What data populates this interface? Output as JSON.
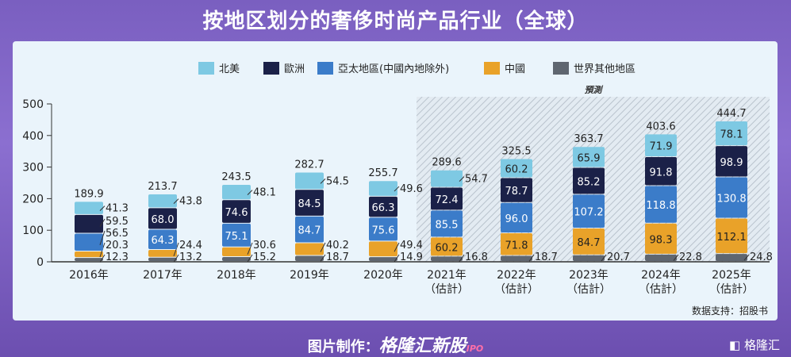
{
  "title": "按地区划分的奢侈时尚产品行业（全球）",
  "footer": {
    "prefix": "图片制作：",
    "brand": "格隆汇新股",
    "brand_suffix": "IPO",
    "logo": "格隆汇"
  },
  "source": "数据支持：招股书",
  "chart_data": {
    "type": "bar",
    "stacked": true,
    "title": "",
    "xlabel": "",
    "ylabel": "",
    "ylim": [
      0,
      500
    ],
    "yticks": [
      0,
      100,
      200,
      300,
      400,
      500
    ],
    "grid": false,
    "legend_position": "top",
    "forecast_label": "預測",
    "categories": [
      "2016年",
      "2017年",
      "2018年",
      "2019年",
      "2020年",
      "2021年\n（估計）",
      "2022年\n（估計）",
      "2023年\n（估計）",
      "2024年\n（估計）",
      "2025年\n（估計）"
    ],
    "forecast_from_index": 5,
    "totals": [
      189.9,
      213.7,
      243.5,
      282.7,
      255.7,
      289.6,
      325.5,
      363.7,
      403.6,
      444.7
    ],
    "series": [
      {
        "name": "世界其他地區",
        "color": "#5f6670",
        "values": [
          12.3,
          13.2,
          15.2,
          18.7,
          14.9,
          16.8,
          18.7,
          20.7,
          22.8,
          24.8
        ]
      },
      {
        "name": "中國",
        "color": "#e9a229",
        "values": [
          20.3,
          24.4,
          30.6,
          40.2,
          49.4,
          60.2,
          71.8,
          84.7,
          98.3,
          112.1
        ]
      },
      {
        "name": "亞太地區(中國內地除外)",
        "color": "#3b7cc9",
        "values": [
          56.5,
          64.3,
          75.1,
          84.7,
          75.6,
          85.5,
          96.0,
          107.2,
          118.8,
          130.8
        ]
      },
      {
        "name": "歐洲",
        "color": "#1b2148",
        "values": [
          59.5,
          68.0,
          74.6,
          84.5,
          66.3,
          72.4,
          78.7,
          85.2,
          91.8,
          98.9
        ]
      },
      {
        "name": "北美",
        "color": "#7ec9e3",
        "values": [
          41.3,
          43.8,
          48.1,
          54.5,
          49.6,
          54.7,
          60.2,
          65.9,
          71.9,
          78.1
        ]
      }
    ]
  }
}
